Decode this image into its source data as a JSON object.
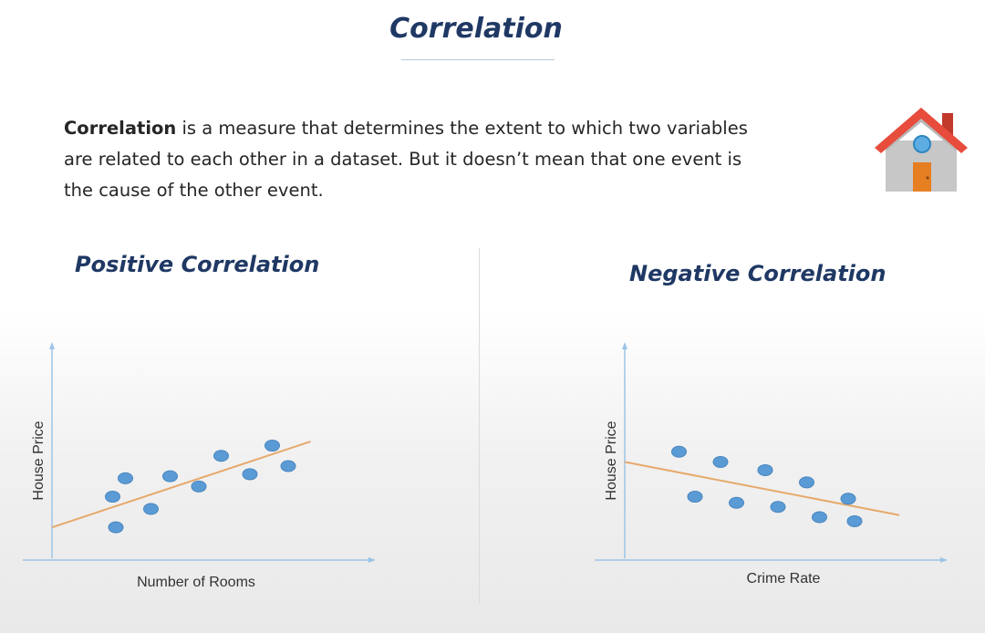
{
  "header": {
    "title": "Correlation"
  },
  "intro": {
    "term": "Correlation",
    "text": " is a measure that determines the extent to which two variables are related to each other in a dataset. But it doesn’t mean that one event is the cause of the other event."
  },
  "panels": {
    "positive": {
      "title": "Positive Correlation"
    },
    "negative": {
      "title": "Negative Correlation"
    }
  },
  "icons": {
    "house": "house-icon"
  },
  "colors": {
    "title": "#1f3864",
    "point": "#5b9bd5",
    "point_edge": "#4a86bf",
    "trendline": "#e6a96b",
    "axis": "#9dc3e6"
  },
  "chart_data": [
    {
      "type": "scatter",
      "title": "Positive Correlation",
      "xlabel": "Number of Rooms",
      "ylabel": "House Price",
      "xlim": [
        0,
        10
      ],
      "ylim": [
        0,
        10
      ],
      "grid": false,
      "points": [
        {
          "x": 1.9,
          "y": 3.1
        },
        {
          "x": 2.3,
          "y": 4.0
        },
        {
          "x": 2.0,
          "y": 1.6
        },
        {
          "x": 3.1,
          "y": 2.5
        },
        {
          "x": 3.7,
          "y": 4.1
        },
        {
          "x": 4.6,
          "y": 3.6
        },
        {
          "x": 5.3,
          "y": 5.1
        },
        {
          "x": 6.2,
          "y": 4.2
        },
        {
          "x": 6.9,
          "y": 5.6
        },
        {
          "x": 7.4,
          "y": 4.6
        }
      ],
      "trendline": {
        "x": [
          0,
          8.1
        ],
        "y": [
          1.6,
          5.8
        ]
      }
    },
    {
      "type": "scatter",
      "title": "Negative Correlation",
      "xlabel": "Crime Rate",
      "ylabel": "House Price",
      "xlim": [
        0,
        10
      ],
      "ylim": [
        0,
        10
      ],
      "grid": false,
      "points": [
        {
          "x": 1.7,
          "y": 5.3
        },
        {
          "x": 2.2,
          "y": 3.1
        },
        {
          "x": 3.0,
          "y": 4.8
        },
        {
          "x": 3.5,
          "y": 2.8
        },
        {
          "x": 4.4,
          "y": 4.4
        },
        {
          "x": 4.8,
          "y": 2.6
        },
        {
          "x": 5.7,
          "y": 3.8
        },
        {
          "x": 6.1,
          "y": 2.1
        },
        {
          "x": 7.0,
          "y": 3.0
        },
        {
          "x": 7.2,
          "y": 1.9
        }
      ],
      "trendline": {
        "x": [
          0,
          8.6
        ],
        "y": [
          4.8,
          2.2
        ]
      }
    }
  ]
}
